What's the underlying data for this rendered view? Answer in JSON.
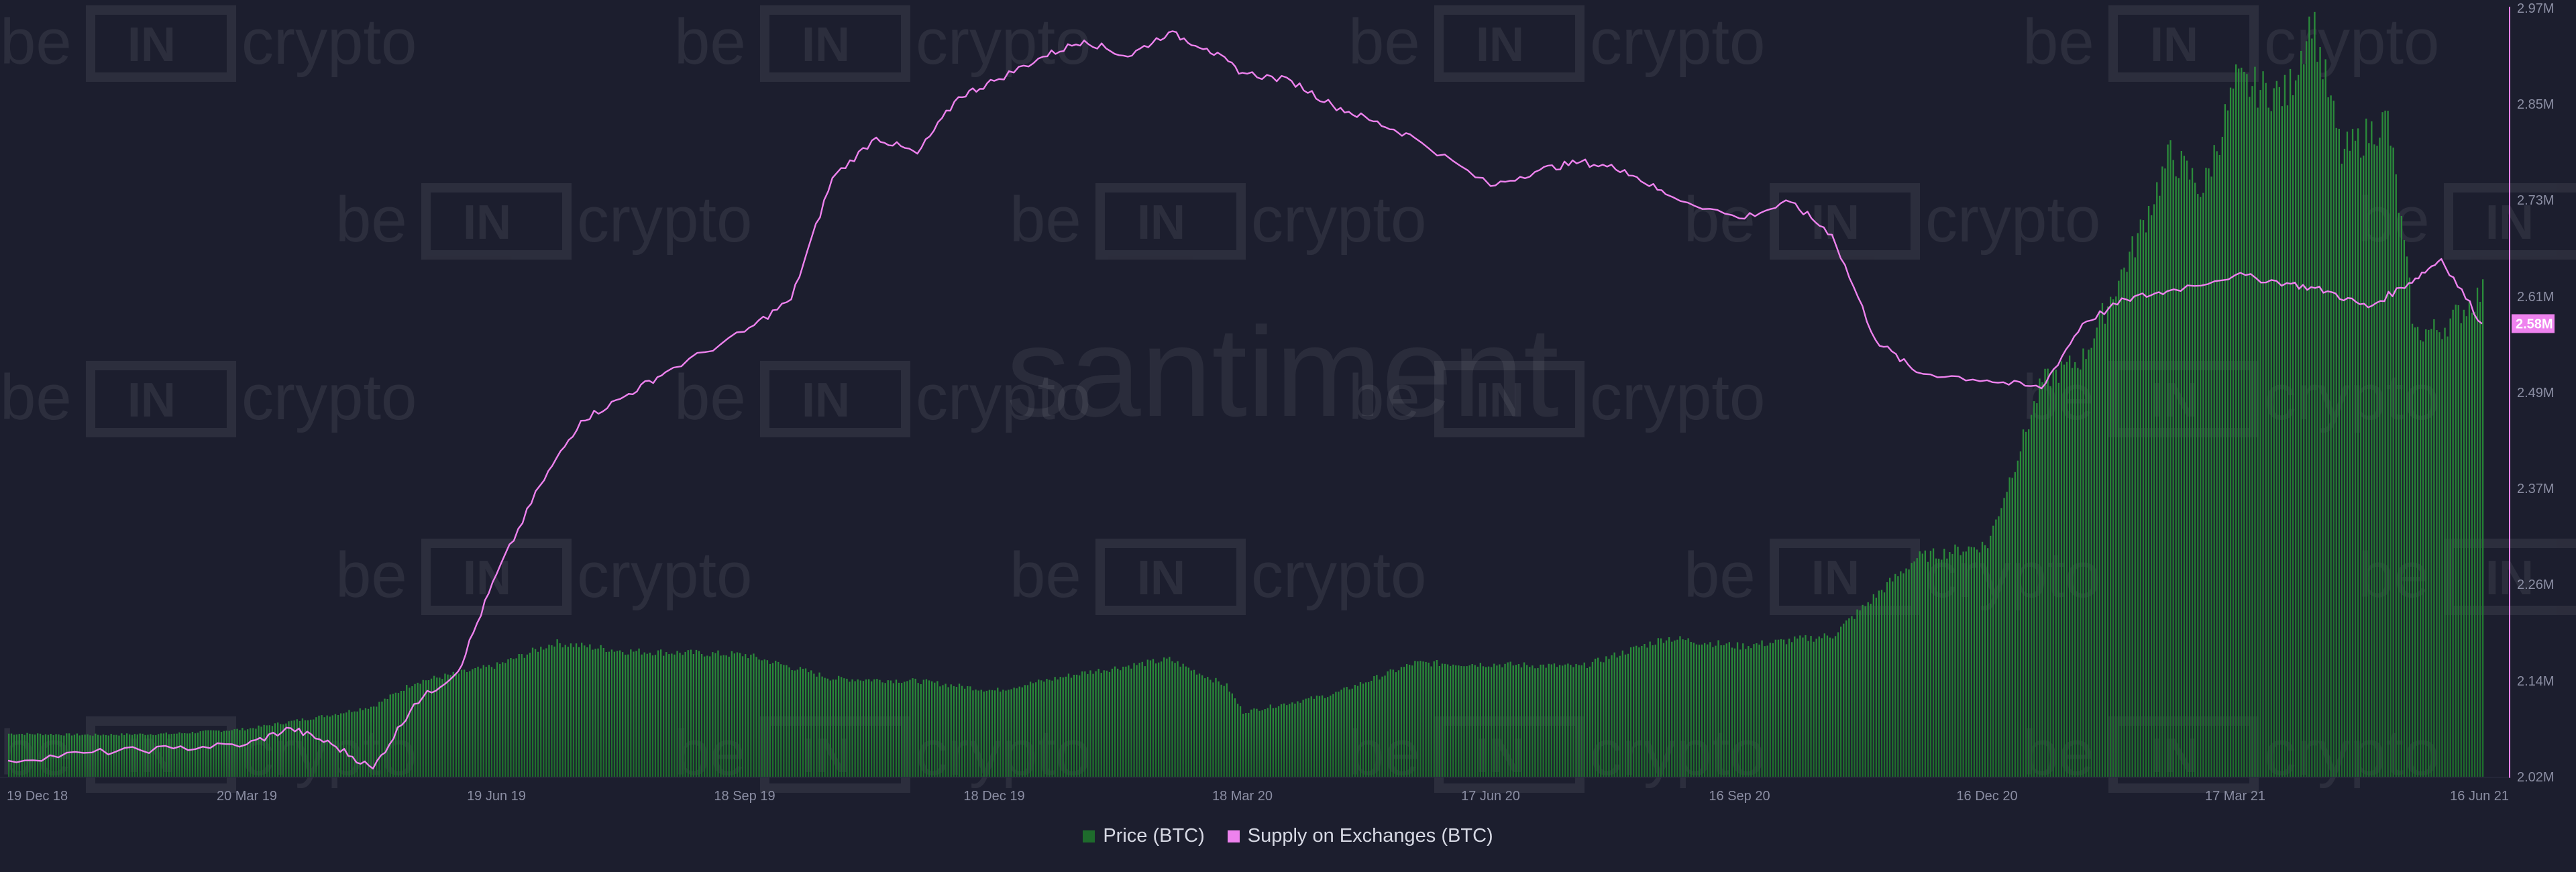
{
  "watermark": {
    "brand": "beincrypto",
    "provider": "santiment"
  },
  "legend": {
    "price_label": "Price (BTC)",
    "supply_label": "Supply on Exchanges (BTC)"
  },
  "colors": {
    "background": "#1c1e2e",
    "price": "#1e6b2c",
    "price_top": "#2a8c3a",
    "supply": "#ee82ee",
    "axis": "#ee82ee",
    "tick_text": "#8b8ea3"
  },
  "chart_data": {
    "type": "area",
    "x_tick_labels": [
      "19 Dec 18",
      "20 Mar 19",
      "19 Jun 19",
      "18 Sep 19",
      "18 Dec 19",
      "18 Mar 20",
      "17 Jun 20",
      "16 Sep 20",
      "16 Dec 20",
      "17 Mar 21",
      "16 Jun 21"
    ],
    "y_right_tick_labels": [
      "2.97M",
      "2.85M",
      "2.73M",
      "2.61M",
      "2.49M",
      "2.37M",
      "2.26M",
      "2.14M",
      "2.02M"
    ],
    "y_right_range": [
      2020000,
      2970000
    ],
    "current_supply_label": "2.58M",
    "grid": false,
    "legend_position": "bottom-center",
    "series": [
      {
        "name": "Price (BTC)",
        "type": "bar-area",
        "x": [
          "19 Dec 18",
          "20 Jan 19",
          "20 Feb 19",
          "20 Mar 19",
          "20 Apr 19",
          "5 May 19",
          "20 May 19",
          "19 Jun 19",
          "10 Jul 19",
          "5 Aug 19",
          "18 Sep 19",
          "20 Oct 19",
          "20 Nov 19",
          "18 Dec 19",
          "20 Jan 20",
          "20 Feb 20",
          "12 Mar 20",
          "18 Mar 20",
          "20 Apr 20",
          "20 May 20",
          "17 Jun 20",
          "20 Jul 20",
          "20 Aug 20",
          "16 Sep 20",
          "20 Oct 20",
          "20 Nov 20",
          "16 Dec 20",
          "5 Jan 21",
          "20 Jan 21",
          "8 Feb 21",
          "21 Feb 21",
          "5 Mar 21",
          "17 Mar 21",
          "5 Apr 21",
          "14 Apr 21",
          "25 Apr 21",
          "12 May 21",
          "22 May 21",
          "1 Jun 21",
          "16 Jun 21"
        ],
        "values": [
          3600,
          3500,
          3600,
          4000,
          5200,
          5900,
          7900,
          9300,
          11200,
          10500,
          10200,
          8200,
          8000,
          7200,
          8700,
          9800,
          7600,
          5400,
          6900,
          9500,
          9400,
          9200,
          11600,
          10900,
          11800,
          18300,
          19400,
          33000,
          35000,
          44500,
          52000,
          49000,
          58000,
          57000,
          63500,
          52000,
          55000,
          37000,
          37500,
          40500
        ]
      },
      {
        "name": "Supply on Exchanges (BTC)",
        "type": "line",
        "x": [
          "19 Dec 18",
          "20 Jan 19",
          "20 Feb 19",
          "20 Mar 19",
          "5 Apr 19",
          "20 Apr 19",
          "5 May 19",
          "20 May 19",
          "5 Jun 19",
          "19 Jun 19",
          "5 Jul 19",
          "20 Jul 19",
          "5 Aug 19",
          "20 Aug 19",
          "18 Sep 19",
          "5 Oct 19",
          "20 Oct 19",
          "5 Nov 19",
          "20 Nov 19",
          "5 Dec 19",
          "18 Dec 19",
          "5 Jan 20",
          "20 Jan 20",
          "5 Feb 20",
          "20 Feb 20",
          "5 Mar 20",
          "18 Mar 20",
          "5 Apr 20",
          "20 Apr 20",
          "5 May 20",
          "20 May 20",
          "17 Jun 20",
          "5 Jul 20",
          "20 Jul 20",
          "5 Aug 20",
          "20 Aug 20",
          "16 Sep 20",
          "5 Oct 20",
          "20 Oct 20",
          "5 Nov 20",
          "20 Nov 20",
          "16 Dec 20",
          "5 Jan 21",
          "20 Jan 21",
          "5 Feb 21",
          "20 Feb 21",
          "17 Mar 21",
          "5 Apr 21",
          "20 Apr 21",
          "5 May 21",
          "20 May 21",
          "1 Jun 21",
          "16 Jun 21"
        ],
        "values": [
          2040000,
          2050000,
          2055000,
          2060000,
          2080000,
          2060000,
          2030000,
          2110000,
          2150000,
          2270000,
          2380000,
          2460000,
          2490000,
          2520000,
          2570000,
          2610000,
          2760000,
          2810000,
          2790000,
          2860000,
          2880000,
          2910000,
          2930000,
          2910000,
          2940000,
          2920000,
          2890000,
          2880000,
          2850000,
          2830000,
          2810000,
          2750000,
          2770000,
          2780000,
          2770000,
          2740000,
          2710000,
          2730000,
          2690000,
          2560000,
          2520000,
          2510000,
          2500000,
          2580000,
          2610000,
          2620000,
          2640000,
          2630000,
          2620000,
          2600000,
          2630000,
          2660000,
          2580000
        ]
      }
    ]
  }
}
